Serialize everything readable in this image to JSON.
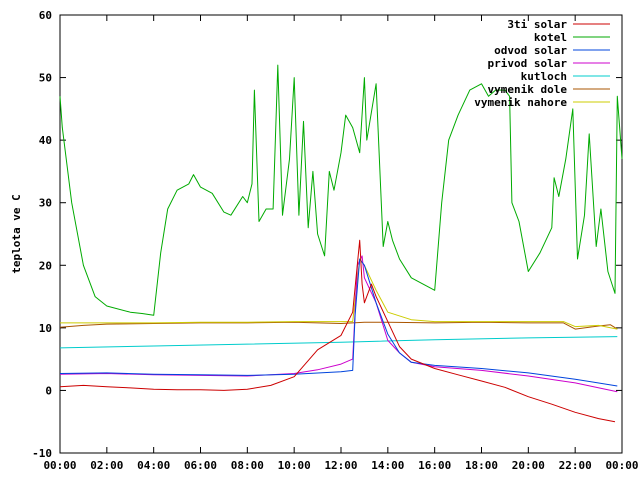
{
  "chart_data": {
    "type": "line",
    "title": "",
    "xlabel": "",
    "ylabel": "teplota ve C",
    "xlim": [
      0,
      24
    ],
    "ylim": [
      -10,
      60
    ],
    "grid": false,
    "legend_position": "top-right",
    "x_ticks": [
      {
        "value": 0,
        "label": "00:00"
      },
      {
        "value": 2,
        "label": "02:00"
      },
      {
        "value": 4,
        "label": "04:00"
      },
      {
        "value": 6,
        "label": "06:00"
      },
      {
        "value": 8,
        "label": "08:00"
      },
      {
        "value": 10,
        "label": "10:00"
      },
      {
        "value": 12,
        "label": "12:00"
      },
      {
        "value": 14,
        "label": "14:00"
      },
      {
        "value": 16,
        "label": "16:00"
      },
      {
        "value": 18,
        "label": "18:00"
      },
      {
        "value": 20,
        "label": "20:00"
      },
      {
        "value": 22,
        "label": "22:00"
      },
      {
        "value": 24,
        "label": "00:00"
      }
    ],
    "y_ticks": [
      {
        "value": -10,
        "label": "-10"
      },
      {
        "value": 0,
        "label": "0"
      },
      {
        "value": 10,
        "label": "10"
      },
      {
        "value": 20,
        "label": "20"
      },
      {
        "value": 30,
        "label": "30"
      },
      {
        "value": 40,
        "label": "40"
      },
      {
        "value": 50,
        "label": "50"
      },
      {
        "value": 60,
        "label": "60"
      }
    ],
    "series": [
      {
        "name": "3ti solar",
        "color": "#cc0000",
        "points": [
          [
            0,
            0.6
          ],
          [
            1,
            0.8
          ],
          [
            2,
            0.6
          ],
          [
            3,
            0.4
          ],
          [
            4,
            0.2
          ],
          [
            5,
            0.1
          ],
          [
            6,
            0.1
          ],
          [
            7,
            0
          ],
          [
            8,
            0.2
          ],
          [
            9,
            0.8
          ],
          [
            10,
            2.2
          ],
          [
            11,
            6.5
          ],
          [
            12,
            8.8
          ],
          [
            12.5,
            12.5
          ],
          [
            12.8,
            24
          ],
          [
            12.9,
            17
          ],
          [
            13,
            14
          ],
          [
            13.3,
            17
          ],
          [
            13.5,
            15
          ],
          [
            14,
            11
          ],
          [
            14.5,
            7
          ],
          [
            15,
            5
          ],
          [
            16,
            3.5
          ],
          [
            17,
            2.5
          ],
          [
            18,
            1.5
          ],
          [
            19,
            0.5
          ],
          [
            20,
            -1
          ],
          [
            21,
            -2.2
          ],
          [
            22,
            -3.5
          ],
          [
            23,
            -4.5
          ],
          [
            23.7,
            -5
          ]
        ]
      },
      {
        "name": "kotel",
        "color": "#00aa00",
        "points": [
          [
            0,
            47
          ],
          [
            0.1,
            42
          ],
          [
            0.5,
            30
          ],
          [
            1,
            20
          ],
          [
            1.5,
            15
          ],
          [
            2,
            13.5
          ],
          [
            3,
            12.5
          ],
          [
            3.5,
            12.3
          ],
          [
            4,
            12
          ],
          [
            4.3,
            22
          ],
          [
            4.6,
            29
          ],
          [
            5,
            32
          ],
          [
            5.5,
            33
          ],
          [
            5.7,
            34.5
          ],
          [
            6,
            32.5
          ],
          [
            6.5,
            31.5
          ],
          [
            7,
            28.5
          ],
          [
            7.3,
            28
          ],
          [
            7.8,
            31
          ],
          [
            8,
            30
          ],
          [
            8.2,
            33
          ],
          [
            8.3,
            48
          ],
          [
            8.5,
            27
          ],
          [
            8.8,
            29
          ],
          [
            9.1,
            29
          ],
          [
            9.3,
            52
          ],
          [
            9.5,
            28
          ],
          [
            9.8,
            37
          ],
          [
            10,
            50
          ],
          [
            10.2,
            28
          ],
          [
            10.4,
            43
          ],
          [
            10.6,
            26
          ],
          [
            10.8,
            35
          ],
          [
            11,
            25
          ],
          [
            11.3,
            21.5
          ],
          [
            11.5,
            35
          ],
          [
            11.7,
            32
          ],
          [
            12,
            38
          ],
          [
            12.2,
            44
          ],
          [
            12.5,
            42
          ],
          [
            12.8,
            38
          ],
          [
            13,
            50
          ],
          [
            13.1,
            40
          ],
          [
            13.5,
            49
          ],
          [
            13.8,
            23
          ],
          [
            14,
            27
          ],
          [
            14.2,
            24
          ],
          [
            14.5,
            21
          ],
          [
            15,
            18
          ],
          [
            15.5,
            17
          ],
          [
            16,
            16
          ],
          [
            16.3,
            30
          ],
          [
            16.6,
            40
          ],
          [
            17,
            44
          ],
          [
            17.5,
            48
          ],
          [
            18,
            49
          ],
          [
            18.3,
            47
          ],
          [
            18.6,
            48
          ],
          [
            19,
            48
          ],
          [
            19.2,
            47
          ],
          [
            19.3,
            30
          ],
          [
            19.6,
            27
          ],
          [
            20,
            19
          ],
          [
            20.5,
            22
          ],
          [
            21,
            26
          ],
          [
            21.1,
            34
          ],
          [
            21.3,
            31
          ],
          [
            21.6,
            37
          ],
          [
            21.9,
            45
          ],
          [
            22.1,
            21
          ],
          [
            22.4,
            28
          ],
          [
            22.6,
            41
          ],
          [
            22.9,
            23
          ],
          [
            23.1,
            29
          ],
          [
            23.4,
            19
          ],
          [
            23.7,
            15.5
          ],
          [
            23.8,
            47
          ],
          [
            24,
            37
          ]
        ]
      },
      {
        "name": "odvod solar",
        "color": "#0044dd",
        "points": [
          [
            0,
            2.7
          ],
          [
            2,
            2.8
          ],
          [
            4,
            2.6
          ],
          [
            6,
            2.5
          ],
          [
            8,
            2.4
          ],
          [
            10,
            2.6
          ],
          [
            12,
            3
          ],
          [
            12.5,
            3.2
          ],
          [
            12.6,
            12
          ],
          [
            12.8,
            21
          ],
          [
            13,
            20
          ],
          [
            13.5,
            14
          ],
          [
            14,
            9
          ],
          [
            14.5,
            6
          ],
          [
            15,
            4.5
          ],
          [
            16,
            4
          ],
          [
            18,
            3.5
          ],
          [
            20,
            2.8
          ],
          [
            22,
            1.8
          ],
          [
            23.8,
            0.7
          ]
        ]
      },
      {
        "name": "privod solar",
        "color": "#cc00cc",
        "points": [
          [
            0,
            2.6
          ],
          [
            2,
            2.7
          ],
          [
            4,
            2.5
          ],
          [
            6,
            2.4
          ],
          [
            8,
            2.3
          ],
          [
            10,
            2.7
          ],
          [
            11,
            3.3
          ],
          [
            12,
            4.2
          ],
          [
            12.5,
            5
          ],
          [
            12.7,
            20
          ],
          [
            12.9,
            21.5
          ],
          [
            13,
            18
          ],
          [
            13.5,
            14
          ],
          [
            14,
            8
          ],
          [
            14.5,
            6
          ],
          [
            15,
            4.5
          ],
          [
            16,
            3.8
          ],
          [
            18,
            3.2
          ],
          [
            20,
            2.3
          ],
          [
            22,
            1.2
          ],
          [
            23.8,
            -0.2
          ]
        ]
      },
      {
        "name": "kutloch",
        "color": "#00cccc",
        "points": [
          [
            0,
            6.8
          ],
          [
            4,
            7.1
          ],
          [
            8,
            7.4
          ],
          [
            12,
            7.7
          ],
          [
            13,
            7.8
          ],
          [
            16,
            8.1
          ],
          [
            20,
            8.4
          ],
          [
            23.8,
            8.6
          ]
        ]
      },
      {
        "name": "vymenik dole",
        "color": "#aa5500",
        "points": [
          [
            0,
            10.1
          ],
          [
            1,
            10.4
          ],
          [
            2,
            10.6
          ],
          [
            4,
            10.7
          ],
          [
            6,
            10.8
          ],
          [
            8,
            10.8
          ],
          [
            10,
            10.9
          ],
          [
            12,
            10.7
          ],
          [
            13,
            10.9
          ],
          [
            14,
            10.9
          ],
          [
            16,
            10.8
          ],
          [
            18,
            10.9
          ],
          [
            20,
            10.8
          ],
          [
            21.5,
            10.8
          ],
          [
            22,
            9.8
          ],
          [
            23,
            10.3
          ],
          [
            23.5,
            10.5
          ],
          [
            23.8,
            9.8
          ]
        ]
      },
      {
        "name": "vymenik nahore",
        "color": "#cccc00",
        "points": [
          [
            0,
            10.8
          ],
          [
            2,
            10.8
          ],
          [
            4,
            10.8
          ],
          [
            6,
            10.9
          ],
          [
            8,
            10.9
          ],
          [
            10,
            11
          ],
          [
            12,
            11
          ],
          [
            12.5,
            11
          ],
          [
            12.8,
            21
          ],
          [
            13,
            20
          ],
          [
            13.5,
            16
          ],
          [
            14,
            12.5
          ],
          [
            15,
            11.3
          ],
          [
            16,
            11
          ],
          [
            18,
            11
          ],
          [
            20,
            11
          ],
          [
            21.5,
            11
          ],
          [
            22,
            10.2
          ],
          [
            23,
            10.4
          ],
          [
            23.8,
            9.8
          ]
        ]
      }
    ]
  }
}
